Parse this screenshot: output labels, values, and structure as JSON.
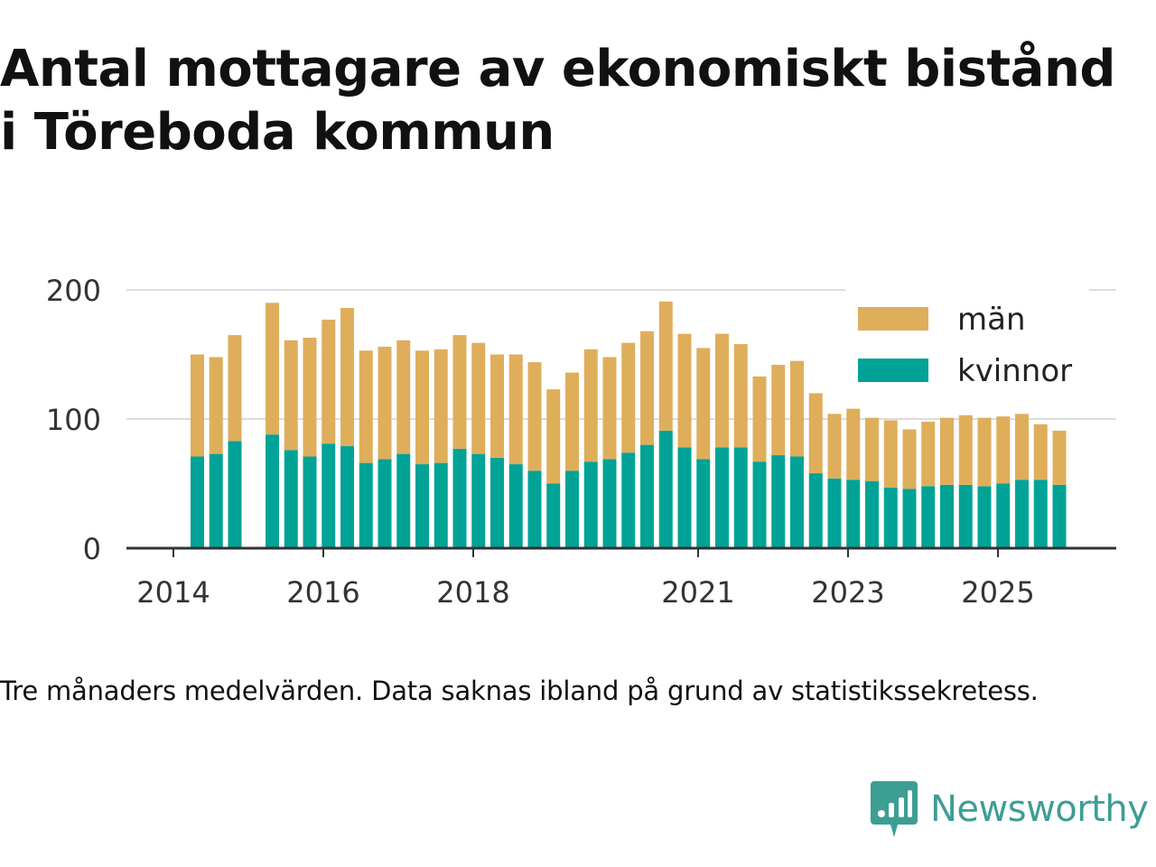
{
  "title_line1": "Antal mottagare av ekonomiskt bistånd",
  "title_line2": "i Töreboda kommun",
  "footnote": "Tre månaders medelvärden. Data saknas ibland på grund av statistikssekretess.",
  "brand": {
    "name": "Newsworthy",
    "icon": "newsworthy-logo-icon",
    "color": "#3d9e93"
  },
  "chart_data": {
    "type": "bar",
    "stacked": true,
    "x_ticks": [
      "2014",
      "2016",
      "2018",
      "2021",
      "2023",
      "2025"
    ],
    "y_ticks": [
      "0",
      "100",
      "200"
    ],
    "ylim": [
      0,
      200
    ],
    "grid": true,
    "legend_position": "top-right",
    "categories": [
      "2014-Q2",
      "2014-Q3",
      "2014-Q4",
      "2015-Q1",
      "2015-Q2",
      "2015-Q3",
      "2015-Q4",
      "2016-Q1",
      "2016-Q2",
      "2016-Q3",
      "2016-Q4",
      "2017-Q1",
      "2017-Q2",
      "2017-Q3",
      "2017-Q4",
      "2018-Q1",
      "2018-Q2",
      "2018-Q3",
      "2018-Q4",
      "2019-Q1",
      "2019-Q2",
      "2019-Q3",
      "2019-Q4",
      "2020-Q1",
      "2020-Q2",
      "2020-Q3",
      "2020-Q4",
      "2021-Q1",
      "2021-Q2",
      "2021-Q3",
      "2021-Q4",
      "2022-Q1",
      "2022-Q2",
      "2022-Q3",
      "2022-Q4",
      "2023-Q1",
      "2023-Q2",
      "2023-Q3",
      "2023-Q4",
      "2024-Q1",
      "2024-Q2",
      "2024-Q3",
      "2024-Q4",
      "2025-Q1",
      "2025-Q2",
      "2025-Q3",
      "2025-Q4"
    ],
    "series": [
      {
        "name": "kvinnor",
        "color": "#00a396",
        "values": [
          71,
          73,
          83,
          null,
          88,
          76,
          71,
          81,
          79,
          66,
          69,
          73,
          65,
          66,
          77,
          73,
          70,
          65,
          60,
          50,
          60,
          67,
          69,
          74,
          80,
          91,
          78,
          69,
          78,
          78,
          67,
          72,
          71,
          58,
          54,
          53,
          52,
          47,
          46,
          48,
          49,
          49,
          48,
          50,
          53,
          53,
          49
        ]
      },
      {
        "name": "män",
        "color": "#dfae5b",
        "values": [
          79,
          75,
          82,
          null,
          102,
          85,
          92,
          96,
          107,
          87,
          87,
          88,
          88,
          88,
          88,
          86,
          80,
          85,
          84,
          73,
          76,
          87,
          79,
          85,
          88,
          100,
          88,
          86,
          88,
          80,
          66,
          70,
          74,
          62,
          50,
          55,
          49,
          52,
          46,
          50,
          52,
          54,
          53,
          52,
          51,
          43,
          42
        ]
      }
    ]
  }
}
